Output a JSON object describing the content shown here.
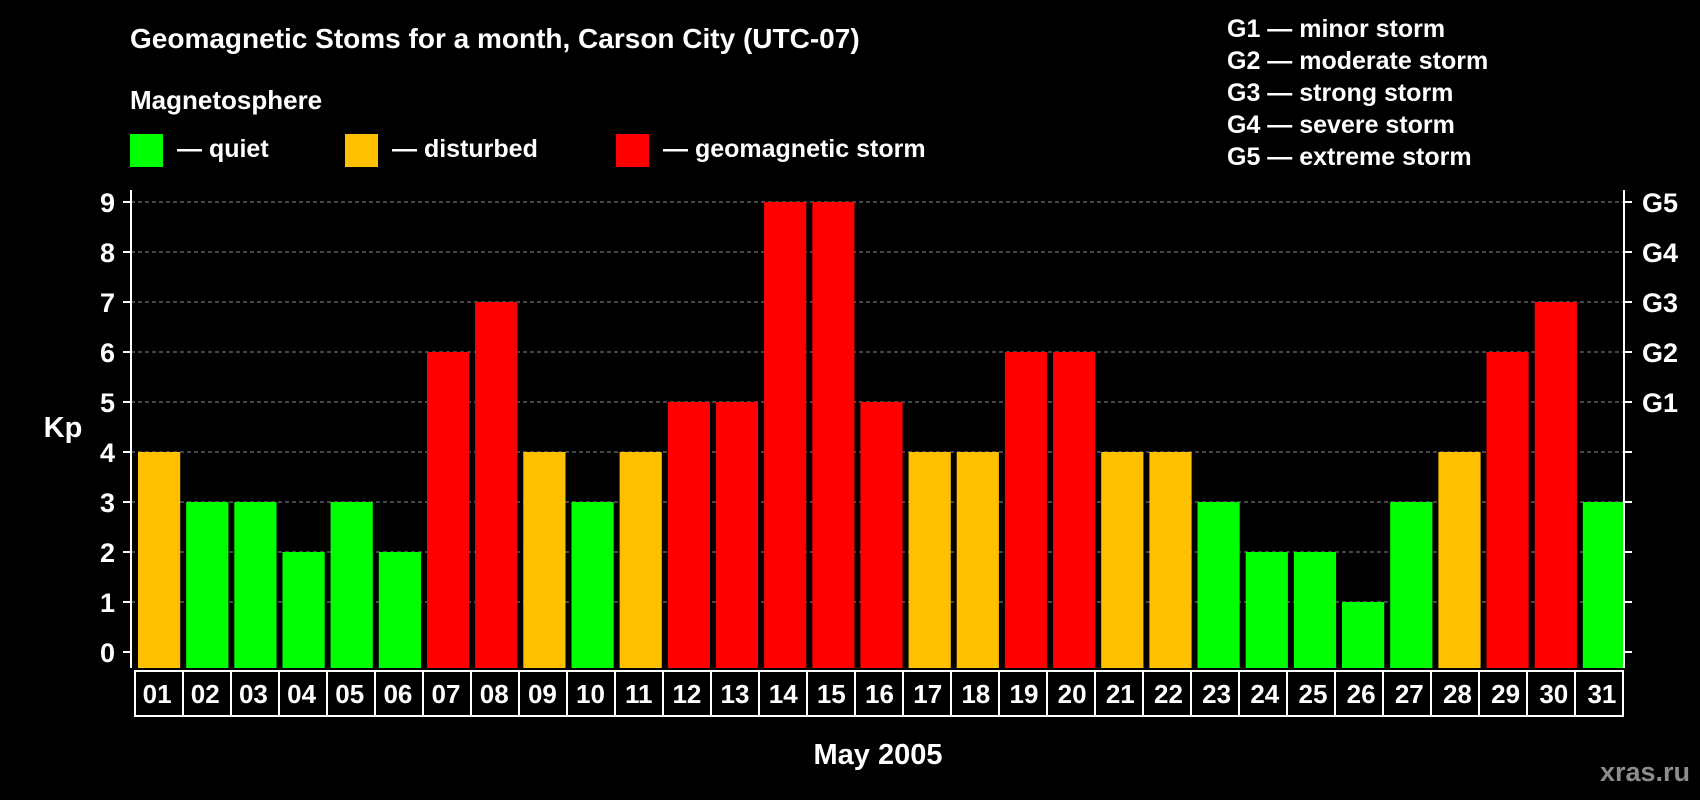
{
  "header": {
    "title": "Geomagnetic Stoms for a month, Carson City (UTC-07)",
    "legend_title": "Magnetosphere",
    "legend": [
      {
        "label": "— quiet",
        "color": "#00ff00"
      },
      {
        "label": "— disturbed",
        "color": "#ffc000"
      },
      {
        "label": "— geomagnetic storm",
        "color": "#ff0000"
      }
    ],
    "scale": [
      "G1 — minor storm",
      "G2 — moderate storm",
      "G3 — strong storm",
      "G4 — severe storm",
      "G5 — extreme storm"
    ]
  },
  "watermark": "xras.ru",
  "chart_data": {
    "type": "bar",
    "title": "Geomagnetic Stoms for a month, Carson City (UTC-07)",
    "xlabel": "May 2005",
    "ylabel": "Kp",
    "ylim": [
      0,
      9
    ],
    "yticks": [
      0,
      1,
      2,
      3,
      4,
      5,
      6,
      7,
      8,
      9
    ],
    "right_axis_labels": [
      {
        "y": 5,
        "label": "G1"
      },
      {
        "y": 6,
        "label": "G2"
      },
      {
        "y": 7,
        "label": "G3"
      },
      {
        "y": 8,
        "label": "G4"
      },
      {
        "y": 9,
        "label": "G5"
      }
    ],
    "grid": true,
    "categories": [
      "01",
      "02",
      "03",
      "04",
      "05",
      "06",
      "07",
      "08",
      "09",
      "10",
      "11",
      "12",
      "13",
      "14",
      "15",
      "16",
      "17",
      "18",
      "19",
      "20",
      "21",
      "22",
      "23",
      "24",
      "25",
      "26",
      "27",
      "28",
      "29",
      "30",
      "31"
    ],
    "values": [
      4,
      3,
      3,
      2,
      3,
      2,
      6,
      7,
      4,
      3,
      4,
      5,
      5,
      9,
      9,
      5,
      4,
      4,
      6,
      6,
      4,
      4,
      3,
      2,
      2,
      1,
      3,
      4,
      6,
      7,
      3
    ],
    "colors": {
      "quiet": "#00ff00",
      "disturbed": "#ffc000",
      "storm": "#ff0000"
    }
  }
}
